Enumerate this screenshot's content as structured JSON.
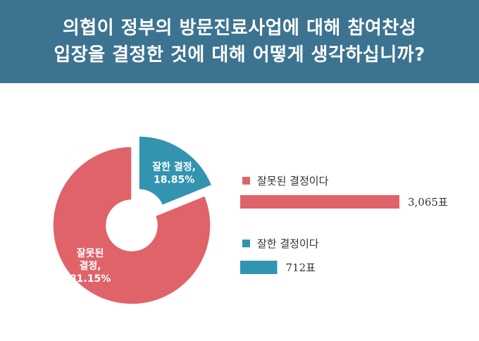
{
  "title": {
    "line1": "의협이 정부의 방문진료사업에 대해 참여찬성",
    "line2": "입장을 결정한 것에 대해 어떻게 생각하십니까?"
  },
  "colors": {
    "header_bg": "#3c7390",
    "red": "#e0636a",
    "blue": "#3394b0"
  },
  "chart_data": [
    {
      "type": "pie",
      "style": "donut, exploded slice",
      "slices": [
        {
          "label_line1": "잘못된",
          "label_line2": "결정,",
          "label_line3": "81.15%",
          "value": 81.15,
          "color": "#e0636a"
        },
        {
          "label_line1": "잘한 결정,",
          "label_line2": "18.85%",
          "value": 18.85,
          "color": "#3394b0"
        }
      ]
    },
    {
      "type": "bar",
      "orientation": "horizontal",
      "categories": [
        "잘못된 결정이다",
        "잘한 결정이다"
      ],
      "values": [
        3065,
        712
      ],
      "value_labels": [
        "3,065표",
        "712표"
      ],
      "colors": [
        "#e0636a",
        "#3394b0"
      ]
    }
  ]
}
